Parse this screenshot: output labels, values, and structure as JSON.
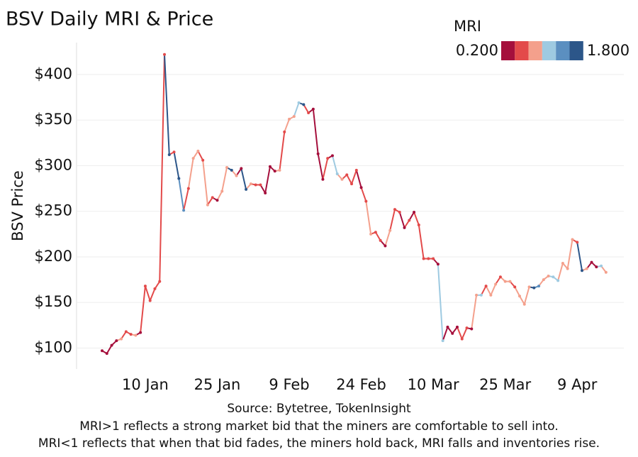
{
  "chart_data": {
    "type": "line",
    "title": "BSV Daily MRI & Price",
    "y_label": "BSV Price",
    "source": "Source: Bytetree, TokenInsight",
    "notes": [
      "MRI>1 reflects a strong market bid that the miners are comfortable to sell into.",
      "MRI<1 reflects that when that bid fades, the miners hold back, MRI falls and inventories rise."
    ],
    "categories": [
      null,
      null,
      null,
      null,
      null,
      null,
      null,
      null,
      null,
      "10 Jan",
      null,
      null,
      null,
      null,
      null,
      null,
      null,
      null,
      null,
      null,
      null,
      null,
      null,
      null,
      "25 Jan",
      null,
      null,
      null,
      null,
      null,
      null,
      null,
      null,
      null,
      null,
      null,
      null,
      null,
      null,
      "9 Feb",
      null,
      null,
      null,
      null,
      null,
      null,
      null,
      null,
      null,
      null,
      null,
      null,
      null,
      null,
      "24 Feb",
      null,
      null,
      null,
      null,
      null,
      null,
      null,
      null,
      null,
      null,
      null,
      null,
      null,
      null,
      "10 Mar",
      null,
      null,
      null,
      null,
      null,
      null,
      null,
      null,
      null,
      null,
      null,
      null,
      null,
      null,
      "25 Mar",
      null,
      null,
      null,
      null,
      null,
      null,
      null,
      null,
      null,
      null,
      null,
      null,
      null,
      null,
      "9 Apr",
      null,
      null,
      null,
      null,
      null,
      null
    ],
    "series": [
      {
        "name": "BSV Price",
        "values": [
          97,
          94,
          103,
          108,
          110,
          118,
          115,
          114,
          117,
          168,
          152,
          165,
          173,
          422,
          312,
          315,
          286,
          251,
          275,
          308,
          316,
          306,
          257,
          265,
          262,
          272,
          298,
          295,
          289,
          297,
          274,
          280,
          279,
          279,
          270,
          299,
          294,
          295,
          337,
          351,
          354,
          369,
          367,
          358,
          362,
          313,
          285,
          308,
          311,
          291,
          285,
          290,
          280,
          295,
          276,
          261,
          225,
          227,
          218,
          212,
          229,
          252,
          249,
          232,
          240,
          249,
          235,
          198,
          198,
          198,
          192,
          108,
          123,
          116,
          123,
          110,
          122,
          121,
          158,
          158,
          168,
          158,
          170,
          178,
          173,
          173,
          167,
          157,
          148,
          167,
          166,
          168,
          175,
          179,
          178,
          174,
          193,
          187,
          219,
          216,
          185,
          187,
          194,
          189,
          190,
          183
        ],
        "mri": [
          0.3,
          0.3,
          0.3,
          0.3,
          0.9,
          0.6,
          0.6,
          0.9,
          0.3,
          0.6,
          0.6,
          0.6,
          0.6,
          0.6,
          1.7,
          0.6,
          1.7,
          1.4,
          0.6,
          0.9,
          0.9,
          0.6,
          0.9,
          0.6,
          0.3,
          0.9,
          0.9,
          1.7,
          0.9,
          0.3,
          1.7,
          0.9,
          0.6,
          0.6,
          0.3,
          0.3,
          0.3,
          0.9,
          0.6,
          0.9,
          0.9,
          1.1,
          1.7,
          0.6,
          0.3,
          0.3,
          0.3,
          0.6,
          0.3,
          1.1,
          0.9,
          0.6,
          0.6,
          0.6,
          0.3,
          0.6,
          0.9,
          0.6,
          0.6,
          0.3,
          0.9,
          0.6,
          0.6,
          0.3,
          0.6,
          0.3,
          0.6,
          0.6,
          0.6,
          0.6,
          0.3,
          1.1,
          0.3,
          0.3,
          0.3,
          0.6,
          0.6,
          0.3,
          0.9,
          1.1,
          0.6,
          0.9,
          0.9,
          0.6,
          0.9,
          0.9,
          0.6,
          0.9,
          0.9,
          0.9,
          1.7,
          1.4,
          0.9,
          0.9,
          1.1,
          1.1,
          0.9,
          0.9,
          0.9,
          0.6,
          1.7,
          0.9,
          0.3,
          0.3,
          1.1,
          0.9
        ]
      }
    ],
    "ylim": [
      77,
      435
    ],
    "yticks": [
      {
        "value": 100,
        "label": "$100"
      },
      {
        "value": 150,
        "label": "$150"
      },
      {
        "value": 200,
        "label": "$200"
      },
      {
        "value": 250,
        "label": "$250"
      },
      {
        "value": 300,
        "label": "$300"
      },
      {
        "value": 350,
        "label": "$350"
      },
      {
        "value": 400,
        "label": "$400"
      }
    ],
    "grid": true,
    "colorscale": {
      "title": "MRI",
      "range": [
        {
          "value": 0.2,
          "label": "0.200"
        },
        {
          "value": 1.8,
          "label": "1.800"
        }
      ],
      "colors": [
        "#a50f3c",
        "#e34a4a",
        "#f4a08c",
        "#9ecae1",
        "#5b8fc0",
        "#2c5689"
      ]
    }
  }
}
